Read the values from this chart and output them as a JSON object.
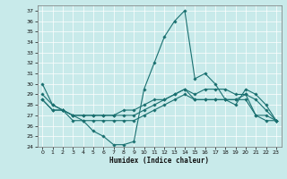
{
  "xlabel": "Humidex (Indice chaleur)",
  "ylabel": "",
  "background_color": "#c8eaea",
  "line_color": "#1a7070",
  "grid_color": "#aadddd",
  "xlim": [
    -0.5,
    23.5
  ],
  "ylim": [
    24,
    37.5
  ],
  "yticks": [
    24,
    25,
    26,
    27,
    28,
    29,
    30,
    31,
    32,
    33,
    34,
    35,
    36,
    37
  ],
  "xticks": [
    0,
    1,
    2,
    3,
    4,
    5,
    6,
    7,
    8,
    9,
    10,
    11,
    12,
    13,
    14,
    15,
    16,
    17,
    18,
    19,
    20,
    21,
    22,
    23
  ],
  "line1_y": [
    30.0,
    28.0,
    27.5,
    27.0,
    26.5,
    25.5,
    25.0,
    24.2,
    24.2,
    24.5,
    29.5,
    32.0,
    34.5,
    36.0,
    37.0,
    30.5,
    31.0,
    30.0,
    28.5,
    28.0,
    29.5,
    29.0,
    28.0,
    26.5
  ],
  "line2_y": [
    29.0,
    28.0,
    27.5,
    27.0,
    27.0,
    27.0,
    27.0,
    27.0,
    27.5,
    27.5,
    28.0,
    28.5,
    28.5,
    29.0,
    29.5,
    29.0,
    29.5,
    29.5,
    29.5,
    29.0,
    29.0,
    28.5,
    27.5,
    26.5
  ],
  "line3_y": [
    28.5,
    27.5,
    27.5,
    27.0,
    27.0,
    27.0,
    27.0,
    27.0,
    27.0,
    27.0,
    27.5,
    28.0,
    28.5,
    29.0,
    29.5,
    28.5,
    28.5,
    28.5,
    28.5,
    28.5,
    29.0,
    27.0,
    27.0,
    26.5
  ],
  "line4_y": [
    28.5,
    27.5,
    27.5,
    26.5,
    26.5,
    26.5,
    26.5,
    26.5,
    26.5,
    26.5,
    27.0,
    27.5,
    28.0,
    28.5,
    29.0,
    28.5,
    28.5,
    28.5,
    28.5,
    28.5,
    28.5,
    27.0,
    26.5,
    26.5
  ]
}
